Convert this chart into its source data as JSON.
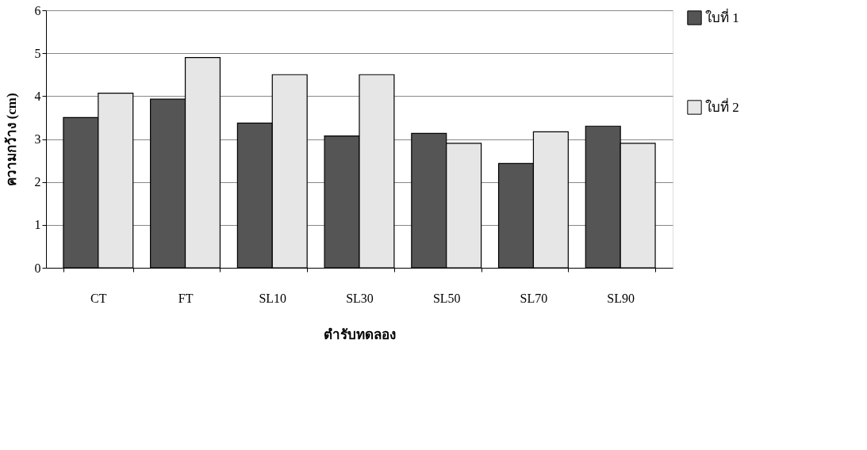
{
  "chart_data": {
    "type": "bar",
    "xlabel": "ตำรับทดลอง",
    "ylabel": "ความกว้าง (cm)",
    "categories": [
      "CT",
      "FT",
      "SL10",
      "SL30",
      "SL50",
      "SL70",
      "SL90"
    ],
    "series": [
      {
        "name": "ใบที่ 1",
        "color": "#555555",
        "values": [
          3.5,
          3.93,
          3.37,
          3.07,
          3.13,
          2.43,
          3.3
        ]
      },
      {
        "name": "ใบที่ 2",
        "color": "#e6e6e6",
        "values": [
          4.07,
          4.9,
          4.5,
          4.5,
          2.9,
          3.17,
          2.9
        ]
      }
    ],
    "ylim": [
      0,
      6
    ],
    "yticks": [
      0,
      1,
      2,
      3,
      4,
      5,
      6
    ],
    "grid": "y",
    "legend": "right"
  }
}
